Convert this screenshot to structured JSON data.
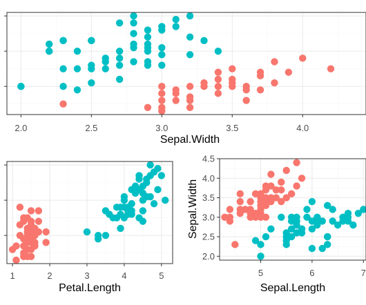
{
  "colors": {
    "setosa": "#F8766D",
    "versicolor": "#00BFC4",
    "grid_major": "#ebebeb",
    "grid_minor": "#f5f5f5",
    "panel_border": "#333333"
  },
  "chart_data": [
    {
      "id": "top",
      "type": "scatter",
      "xlabel": "Sepal.Width",
      "ylabel": "",
      "xlim": [
        1.9,
        4.45
      ],
      "ylim": [
        4.2,
        7.1
      ],
      "x_ticks": [
        2.0,
        2.5,
        3.0,
        3.5,
        4.0
      ],
      "x_tick_labels": [
        "2.0",
        "2.5",
        "3.0",
        "3.5",
        "4.0"
      ],
      "y_ticks": [
        5,
        6,
        7
      ],
      "grid": true,
      "legend": "none",
      "series": [
        {
          "color_key": "setosa",
          "points": [
            [
              2.3,
              4.5
            ],
            [
              2.9,
              4.4
            ],
            [
              3.0,
              4.3
            ],
            [
              3.0,
              4.4
            ],
            [
              3.0,
              4.6
            ],
            [
              3.0,
              4.8
            ],
            [
              3.0,
              5.0
            ],
            [
              3.1,
              4.6
            ],
            [
              3.1,
              4.8
            ],
            [
              3.1,
              4.9
            ],
            [
              3.2,
              4.4
            ],
            [
              3.2,
              4.6
            ],
            [
              3.2,
              4.7
            ],
            [
              3.2,
              5.0
            ],
            [
              3.3,
              5.0
            ],
            [
              3.3,
              5.1
            ],
            [
              3.4,
              4.8
            ],
            [
              3.4,
              5.0
            ],
            [
              3.4,
              5.2
            ],
            [
              3.4,
              5.4
            ],
            [
              3.5,
              5.0
            ],
            [
              3.5,
              5.1
            ],
            [
              3.5,
              5.2
            ],
            [
              3.5,
              5.5
            ],
            [
              3.6,
              4.6
            ],
            [
              3.6,
              4.9
            ],
            [
              3.6,
              5.0
            ],
            [
              3.7,
              5.3
            ],
            [
              3.7,
              5.4
            ],
            [
              3.8,
              5.1
            ],
            [
              3.8,
              5.7
            ],
            [
              3.9,
              5.4
            ],
            [
              4.0,
              5.8
            ],
            [
              4.2,
              5.5
            ],
            [
              3.7,
              4.9
            ]
          ]
        },
        {
          "color_key": "versicolor",
          "points": [
            [
              2.0,
              5.0
            ],
            [
              2.2,
              6.0
            ],
            [
              2.2,
              6.2
            ],
            [
              2.3,
              5.5
            ],
            [
              2.3,
              5.0
            ],
            [
              2.3,
              6.3
            ],
            [
              2.4,
              4.9
            ],
            [
              2.4,
              5.5
            ],
            [
              2.5,
              5.5
            ],
            [
              2.5,
              5.6
            ],
            [
              2.5,
              6.3
            ],
            [
              2.6,
              5.5
            ],
            [
              2.6,
              5.8
            ],
            [
              2.7,
              5.2
            ],
            [
              2.7,
              5.6
            ],
            [
              2.7,
              5.8
            ],
            [
              2.7,
              6.0
            ],
            [
              2.8,
              5.7
            ],
            [
              2.8,
              6.1
            ],
            [
              2.8,
              6.5
            ],
            [
              2.8,
              6.8
            ],
            [
              2.9,
              5.6
            ],
            [
              2.9,
              6.0
            ],
            [
              2.9,
              6.1
            ],
            [
              2.9,
              6.4
            ],
            [
              2.9,
              6.6
            ],
            [
              3.0,
              5.6
            ],
            [
              3.0,
              5.9
            ],
            [
              3.0,
              6.1
            ],
            [
              3.0,
              6.7
            ],
            [
              3.1,
              6.7
            ],
            [
              3.1,
              6.9
            ],
            [
              3.2,
              5.9
            ],
            [
              3.2,
              6.4
            ],
            [
              3.2,
              7.0
            ],
            [
              3.3,
              6.3
            ],
            [
              2.8,
              7.0
            ],
            [
              2.9,
              6.2
            ],
            [
              2.8,
              6.2
            ],
            [
              2.5,
              5.1
            ],
            [
              2.6,
              5.7
            ],
            [
              3.4,
              6.0
            ],
            [
              2.0,
              5.0
            ],
            [
              2.4,
              6.0
            ],
            [
              2.5,
              6.3
            ],
            [
              2.2,
              6.0
            ],
            [
              2.3,
              6.3
            ],
            [
              3.0,
              6.6
            ],
            [
              2.7,
              6.8
            ],
            [
              2.9,
              5.7
            ]
          ]
        }
      ]
    },
    {
      "id": "bottom-left",
      "type": "scatter",
      "xlabel": "Petal.Length",
      "ylabel": "",
      "xlim": [
        0.85,
        5.3
      ],
      "ylim": [
        4.2,
        7.1
      ],
      "x_ticks": [
        1,
        2,
        3,
        4,
        5
      ],
      "x_tick_labels": [
        "1",
        "2",
        "3",
        "4",
        "5"
      ],
      "y_ticks": [
        5,
        6,
        7
      ],
      "grid": true,
      "legend": "none",
      "series": [
        {
          "color_key": "setosa",
          "points": [
            [
              1.1,
              4.3
            ],
            [
              1.4,
              4.4
            ],
            [
              1.3,
              4.4
            ],
            [
              1.5,
              4.4
            ],
            [
              1.3,
              4.5
            ],
            [
              1.5,
              4.6
            ],
            [
              1.0,
              4.6
            ],
            [
              1.4,
              4.6
            ],
            [
              1.6,
              4.7
            ],
            [
              1.3,
              4.7
            ],
            [
              1.5,
              4.8
            ],
            [
              1.9,
              4.8
            ],
            [
              1.6,
              4.8
            ],
            [
              1.4,
              4.9
            ],
            [
              1.5,
              4.9
            ],
            [
              1.4,
              5.0
            ],
            [
              1.6,
              5.0
            ],
            [
              1.2,
              5.0
            ],
            [
              1.5,
              5.1
            ],
            [
              1.7,
              5.1
            ],
            [
              1.4,
              5.1
            ],
            [
              1.5,
              5.2
            ],
            [
              1.4,
              5.2
            ],
            [
              1.3,
              5.4
            ],
            [
              1.5,
              5.4
            ],
            [
              1.7,
              5.4
            ],
            [
              1.4,
              5.5
            ],
            [
              1.3,
              5.5
            ],
            [
              1.5,
              5.7
            ],
            [
              1.7,
              5.7
            ],
            [
              1.2,
              5.8
            ],
            [
              1.9,
              5.1
            ],
            [
              1.6,
              5.0
            ],
            [
              1.3,
              4.9
            ],
            [
              1.2,
              5.3
            ],
            [
              1.5,
              5.3
            ],
            [
              1.4,
              4.8
            ],
            [
              1.5,
              5.0
            ],
            [
              1.1,
              4.7
            ],
            [
              1.6,
              5.2
            ]
          ]
        },
        {
          "color_key": "versicolor",
          "points": [
            [
              3.0,
              5.1
            ],
            [
              3.3,
              4.9
            ],
            [
              3.5,
              5.0
            ],
            [
              3.5,
              5.7
            ],
            [
              3.3,
              5.0
            ],
            [
              3.6,
              5.6
            ],
            [
              3.7,
              5.5
            ],
            [
              3.8,
              5.5
            ],
            [
              3.9,
              5.2
            ],
            [
              3.9,
              5.6
            ],
            [
              3.9,
              5.8
            ],
            [
              4.0,
              5.5
            ],
            [
              4.0,
              6.0
            ],
            [
              4.0,
              5.8
            ],
            [
              4.1,
              5.6
            ],
            [
              4.1,
              5.7
            ],
            [
              4.2,
              5.9
            ],
            [
              4.2,
              5.7
            ],
            [
              4.3,
              6.2
            ],
            [
              4.4,
              6.3
            ],
            [
              4.4,
              6.7
            ],
            [
              4.5,
              6.4
            ],
            [
              4.5,
              6.2
            ],
            [
              4.5,
              5.7
            ],
            [
              4.6,
              6.6
            ],
            [
              4.7,
              6.1
            ],
            [
              4.7,
              6.7
            ],
            [
              4.7,
              7.0
            ],
            [
              4.8,
              6.8
            ],
            [
              4.9,
              6.3
            ],
            [
              4.9,
              6.9
            ],
            [
              5.0,
              6.7
            ],
            [
              5.1,
              6.0
            ],
            [
              4.4,
              6.6
            ],
            [
              4.5,
              6.0
            ],
            [
              4.6,
              6.5
            ],
            [
              4.0,
              6.1
            ],
            [
              4.2,
              5.6
            ],
            [
              4.1,
              5.8
            ],
            [
              4.5,
              5.4
            ],
            [
              4.8,
              5.9
            ],
            [
              3.8,
              5.8
            ],
            [
              4.3,
              6.4
            ],
            [
              4.6,
              6.1
            ],
            [
              4.4,
              5.5
            ],
            [
              4.2,
              6.3
            ]
          ]
        }
      ]
    },
    {
      "id": "bottom-right",
      "type": "scatter",
      "xlabel": "Sepal.Length",
      "ylabel": "Sepal.Width",
      "xlim": [
        4.2,
        7.05
      ],
      "ylim": [
        1.9,
        4.5
      ],
      "x_ticks": [
        5,
        6,
        7
      ],
      "x_tick_labels": [
        "5",
        "6",
        "7"
      ],
      "y_ticks": [
        2.0,
        2.5,
        3.0,
        3.5,
        4.0,
        4.5
      ],
      "y_tick_labels": [
        "2.0",
        "2.5",
        "3.0",
        "3.5",
        "4.0",
        "4.5"
      ],
      "grid": true,
      "legend": "none",
      "series": [
        {
          "color_key": "setosa",
          "points": [
            [
              4.3,
              3.0
            ],
            [
              4.4,
              2.9
            ],
            [
              4.4,
              3.0
            ],
            [
              4.4,
              3.2
            ],
            [
              4.5,
              2.3
            ],
            [
              4.6,
              3.1
            ],
            [
              4.6,
              3.4
            ],
            [
              4.6,
              3.6
            ],
            [
              4.6,
              3.2
            ],
            [
              4.7,
              3.2
            ],
            [
              4.8,
              3.0
            ],
            [
              4.8,
              3.4
            ],
            [
              4.8,
              3.1
            ],
            [
              4.9,
              3.0
            ],
            [
              4.9,
              3.1
            ],
            [
              4.9,
              3.6
            ],
            [
              5.0,
              3.0
            ],
            [
              5.0,
              3.3
            ],
            [
              5.0,
              3.4
            ],
            [
              5.0,
              3.5
            ],
            [
              5.0,
              3.6
            ],
            [
              5.0,
              3.2
            ],
            [
              5.1,
              3.3
            ],
            [
              5.1,
              3.4
            ],
            [
              5.1,
              3.5
            ],
            [
              5.1,
              3.7
            ],
            [
              5.1,
              3.8
            ],
            [
              5.2,
              3.4
            ],
            [
              5.2,
              3.5
            ],
            [
              5.2,
              4.1
            ],
            [
              5.3,
              3.7
            ],
            [
              5.4,
              3.4
            ],
            [
              5.4,
              3.7
            ],
            [
              5.4,
              3.9
            ],
            [
              5.5,
              3.5
            ],
            [
              5.5,
              4.2
            ],
            [
              5.7,
              3.8
            ],
            [
              5.7,
              4.4
            ],
            [
              5.8,
              4.0
            ],
            [
              5.1,
              3.0
            ],
            [
              4.8,
              3.2
            ],
            [
              5.0,
              3.1
            ],
            [
              5.3,
              3.5
            ],
            [
              5.2,
              3.8
            ],
            [
              5.6,
              3.6
            ]
          ]
        },
        {
          "color_key": "versicolor",
          "points": [
            [
              4.9,
              2.4
            ],
            [
              5.0,
              2.0
            ],
            [
              5.0,
              2.3
            ],
            [
              5.1,
              2.5
            ],
            [
              5.2,
              2.7
            ],
            [
              5.4,
              3.0
            ],
            [
              5.5,
              2.3
            ],
            [
              5.5,
              2.4
            ],
            [
              5.5,
              2.5
            ],
            [
              5.5,
              2.6
            ],
            [
              5.6,
              2.5
            ],
            [
              5.6,
              2.7
            ],
            [
              5.6,
              2.9
            ],
            [
              5.6,
              3.0
            ],
            [
              5.7,
              2.6
            ],
            [
              5.7,
              2.8
            ],
            [
              5.7,
              2.9
            ],
            [
              5.7,
              3.0
            ],
            [
              5.8,
              2.6
            ],
            [
              5.8,
              2.7
            ],
            [
              5.9,
              3.0
            ],
            [
              5.9,
              3.2
            ],
            [
              6.0,
              2.2
            ],
            [
              6.0,
              2.7
            ],
            [
              6.0,
              2.9
            ],
            [
              6.0,
              3.4
            ],
            [
              6.1,
              2.8
            ],
            [
              6.1,
              2.9
            ],
            [
              6.1,
              3.0
            ],
            [
              6.2,
              2.2
            ],
            [
              6.2,
              2.9
            ],
            [
              6.3,
              2.3
            ],
            [
              6.3,
              2.5
            ],
            [
              6.3,
              3.3
            ],
            [
              6.4,
              2.9
            ],
            [
              6.4,
              3.2
            ],
            [
              6.5,
              2.8
            ],
            [
              6.6,
              2.9
            ],
            [
              6.6,
              3.0
            ],
            [
              6.7,
              3.0
            ],
            [
              6.7,
              3.1
            ],
            [
              6.8,
              2.8
            ],
            [
              6.9,
              3.1
            ],
            [
              7.0,
              3.2
            ],
            [
              6.3,
              2.5
            ],
            [
              5.8,
              2.7
            ],
            [
              6.7,
              2.9
            ]
          ]
        }
      ]
    }
  ]
}
